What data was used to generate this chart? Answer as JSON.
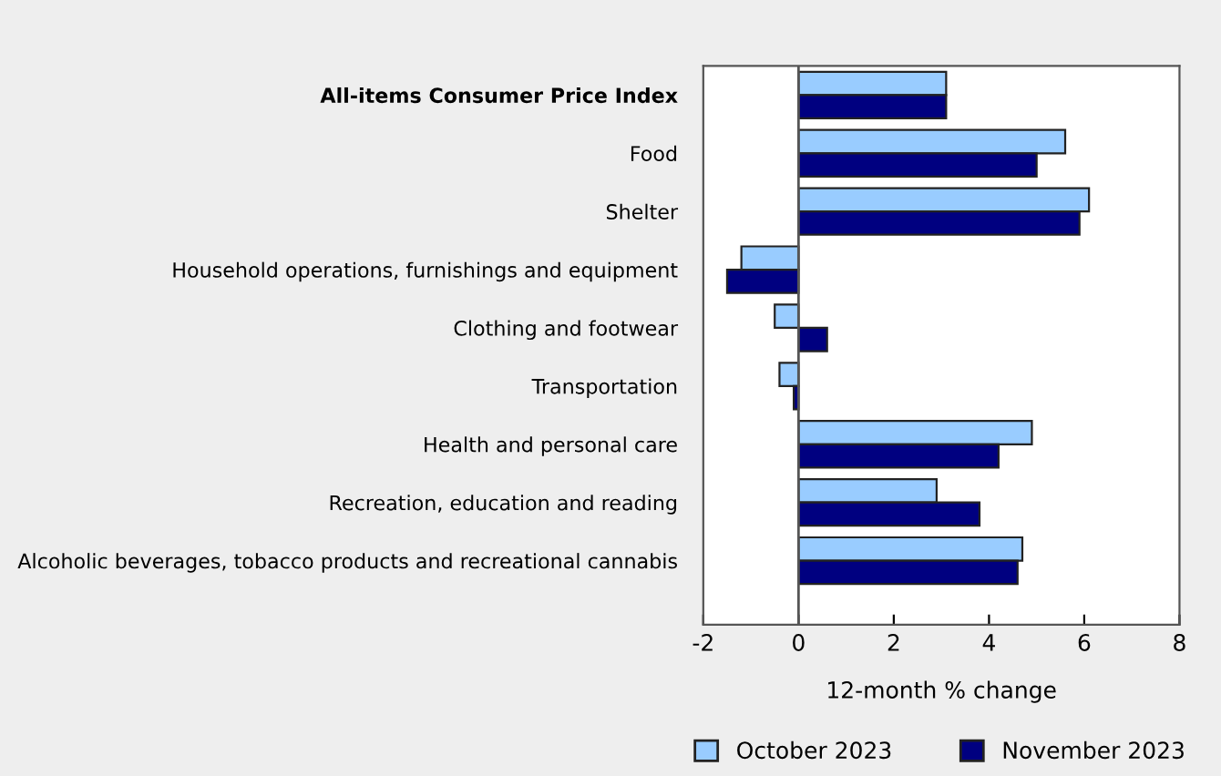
{
  "chart_data": {
    "type": "bar",
    "orientation": "horizontal",
    "xlabel": "12-month % change",
    "categories": [
      "All-items Consumer Price Index",
      "Food",
      "Shelter",
      "Household operations, furnishings and equipment",
      "Clothing and footwear",
      "Transportation",
      "Health and personal care",
      "Recreation, education and reading",
      "Alcoholic beverages, tobacco products and recreational cannabis"
    ],
    "series": [
      {
        "name": "October 2023",
        "color": "#99ccff",
        "values": [
          3.1,
          5.6,
          6.1,
          -1.2,
          -0.5,
          -0.4,
          4.9,
          2.9,
          4.7
        ]
      },
      {
        "name": "November 2023",
        "color": "#000080",
        "values": [
          3.1,
          5.0,
          5.9,
          -1.5,
          0.6,
          -0.1,
          4.2,
          3.8,
          4.6
        ]
      }
    ],
    "xlim": [
      -2,
      8
    ],
    "xticks": [
      -2,
      0,
      2,
      4,
      6,
      8
    ],
    "ref_lines": [
      {
        "axis": "x",
        "value": 0
      }
    ],
    "legend": "bottom"
  }
}
